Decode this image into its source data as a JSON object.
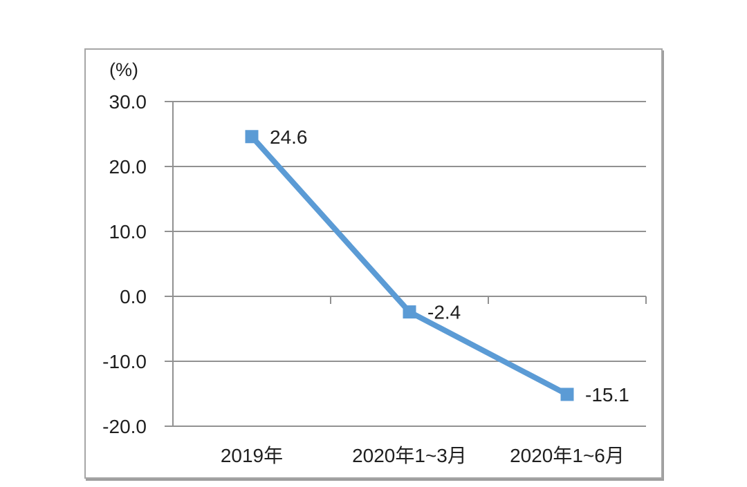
{
  "chart_data": {
    "type": "line",
    "title": "",
    "unit_label": "(%)",
    "categories": [
      "2019年",
      "2020年1~3月",
      "2020年1~6月"
    ],
    "series": [
      {
        "name": "series-1",
        "values": [
          24.6,
          -2.4,
          -15.1
        ],
        "color": "#5b9bd5",
        "marker": "square"
      }
    ],
    "data_labels": [
      "24.6",
      "-2.4",
      "-15.1"
    ],
    "xlabel": "",
    "ylabel": "(%)",
    "ylim": [
      -20,
      30
    ],
    "yticks": [
      30,
      20,
      10,
      0,
      -10,
      -20
    ],
    "ytick_labels": [
      "30.0",
      "20.0",
      "10.0",
      "0.0",
      "-10.0",
      "-20.0"
    ],
    "grid": true,
    "legend_position": "none",
    "gridline_color": "#919191",
    "axis_color": "#8c8c8c",
    "frame_border_color": "#a6a6a6",
    "text_color": "#1f1f1f",
    "background_color": "#ffffff"
  }
}
